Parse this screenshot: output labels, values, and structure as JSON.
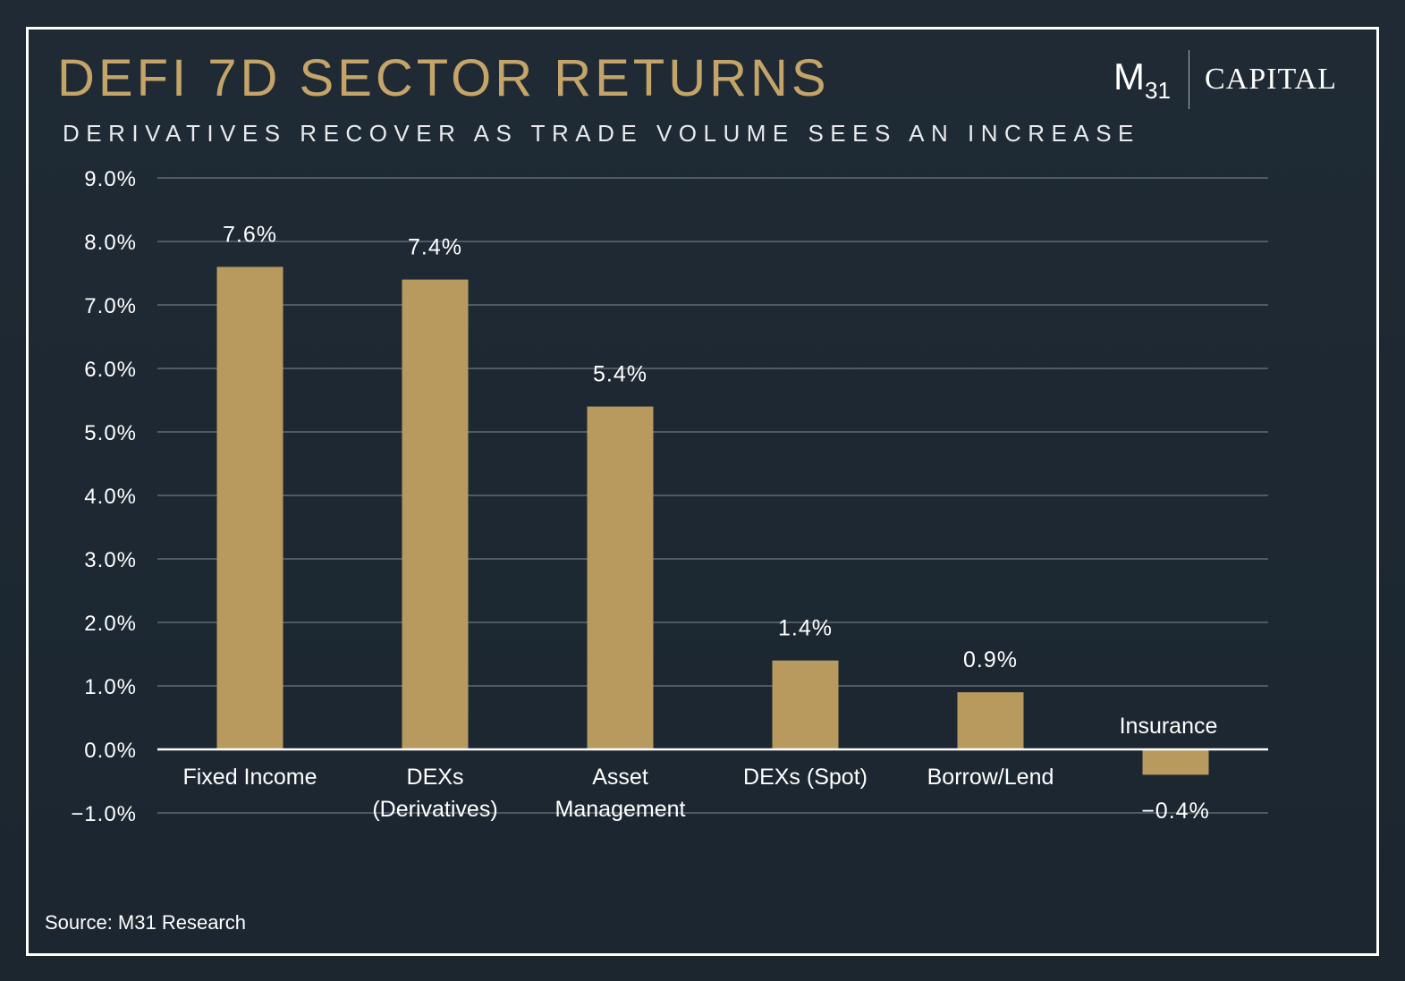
{
  "title": "DEFI 7D SECTOR RETURNS",
  "subtitle": "DERIVATIVES RECOVER AS TRADE VOLUME SEES AN INCREASE",
  "logo": {
    "mark": "M",
    "mark_sub": "31",
    "name": "CAPITAL"
  },
  "source": "Source: M31 Research",
  "colors": {
    "bar": "#b99a5e",
    "title": "#c4a468",
    "grid": "#8a939b",
    "zero_line": "#ffffff"
  },
  "chart_data": {
    "type": "bar",
    "title": "DEFI 7D SECTOR RETURNS",
    "subtitle": "DERIVATIVES RECOVER AS TRADE VOLUME SEES AN INCREASE",
    "categories": [
      "Fixed Income",
      "DEXs (Derivatives)",
      "Asset Management",
      "DEXs (Spot)",
      "Borrow/Lend",
      "Insurance"
    ],
    "category_label_lines": [
      [
        "Fixed Income"
      ],
      [
        "DEXs",
        "(Derivatives)"
      ],
      [
        "Asset",
        "Management"
      ],
      [
        "DEXs (Spot)"
      ],
      [
        "Borrow/Lend"
      ],
      [
        "Insurance"
      ]
    ],
    "values": [
      7.6,
      7.4,
      5.4,
      1.4,
      0.9,
      -0.4
    ],
    "data_labels": [
      "7.6%",
      "7.4%",
      "5.4%",
      "1.4%",
      "0.9%",
      "−0.4%"
    ],
    "y_ticks": [
      -1,
      0,
      1,
      2,
      3,
      4,
      5,
      6,
      7,
      8,
      9
    ],
    "y_tick_labels": [
      "−1.0%",
      "0.0%",
      "1.0%",
      "2.0%",
      "3.0%",
      "4.0%",
      "5.0%",
      "6.0%",
      "7.0%",
      "8.0%",
      "9.0%"
    ],
    "ylim": [
      -1,
      9
    ],
    "grid": true,
    "legend": false
  }
}
